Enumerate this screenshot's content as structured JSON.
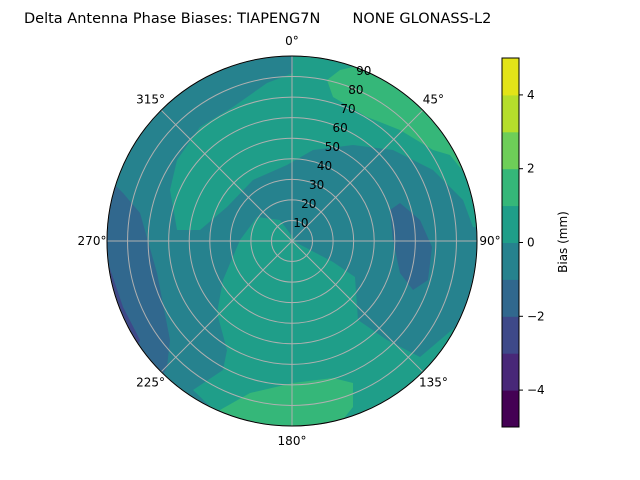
{
  "chart_data": {
    "type": "contour-polar",
    "title": "Delta Antenna Phase Biases: TIAPENG7N       NONE GLONASS-L2",
    "angular_ticks": [
      "0°",
      "45°",
      "90°",
      "135°",
      "180°",
      "225°",
      "270°",
      "315°"
    ],
    "angular_tick_values": [
      0,
      45,
      90,
      135,
      180,
      225,
      270,
      315
    ],
    "radial_ticks": [
      "10",
      "20",
      "30",
      "40",
      "50",
      "60",
      "70",
      "80",
      "90"
    ],
    "radial_tick_values": [
      10,
      20,
      30,
      40,
      50,
      60,
      70,
      80,
      90
    ],
    "rlim": [
      0,
      90
    ],
    "grid": true,
    "colorbar": {
      "label": "Bias (mm)",
      "levels": [
        -5,
        -4,
        -3,
        -2,
        -1,
        0,
        1,
        2,
        3,
        4,
        5
      ],
      "colors": [
        "#440154",
        "#482878",
        "#3e4989",
        "#31688e",
        "#26828e",
        "#1f9e89",
        "#35b779",
        "#6ece58",
        "#b5de2b",
        "#e3e418"
      ],
      "ticks": [
        4,
        2,
        0,
        -2,
        -4
      ],
      "tick_labels": [
        "4",
        "2",
        "0",
        "−2",
        "−4"
      ],
      "range": [
        -5,
        5
      ]
    },
    "regions": [
      {
        "name": "background",
        "bias_bin": [
          -1,
          0
        ]
      },
      {
        "name": "upper teal",
        "bias_bin": [
          0,
          1
        ]
      },
      {
        "name": "lower teal",
        "bias_bin": [
          0,
          1
        ]
      },
      {
        "name": "north-east high",
        "bias_bin": [
          1,
          2
        ]
      },
      {
        "name": "south high",
        "bias_bin": [
          1,
          2
        ]
      },
      {
        "name": "east low",
        "bias_bin": [
          -2,
          -1
        ]
      },
      {
        "name": "west low band",
        "bias_bin": [
          -2,
          -1
        ]
      },
      {
        "name": "west lowest strip",
        "bias_bin": [
          -3,
          -2
        ]
      }
    ]
  }
}
